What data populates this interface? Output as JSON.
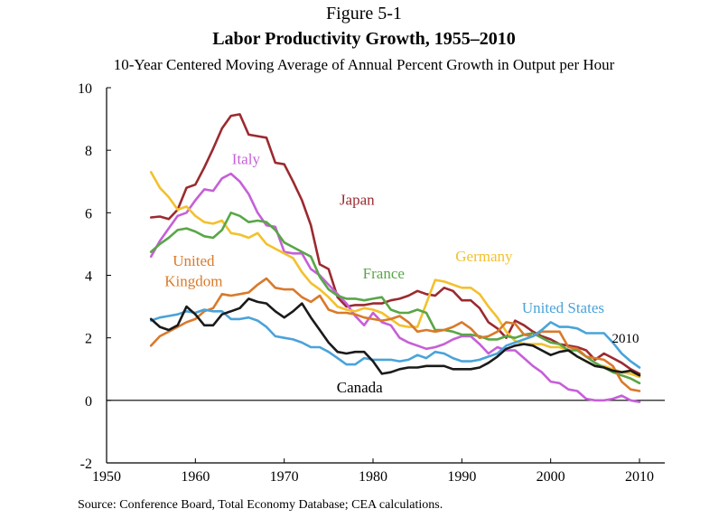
{
  "figure_label": "Figure 5-1",
  "chart_data": {
    "type": "line",
    "title": "Labor Productivity Growth, 1955–2010",
    "subtitle": "10-Year Centered Moving Average of Annual Percent Growth in Output per Hour",
    "source": "Source: Conference Board, Total Economy Database; CEA calculations.",
    "xlabel": "",
    "ylabel": "",
    "xlim": [
      1950,
      2010
    ],
    "ylim": [
      -2,
      10
    ],
    "xticks": [
      1950,
      1960,
      1970,
      1980,
      1990,
      2000,
      2010
    ],
    "yticks": [
      -2,
      0,
      2,
      4,
      6,
      8,
      10
    ],
    "grid": false,
    "end_annotation": "2010",
    "series": [
      {
        "name": "Japan",
        "color": "#9b2a30",
        "x": [
          1955,
          1956,
          1957,
          1958,
          1959,
          1960,
          1961,
          1962,
          1963,
          1964,
          1965,
          1966,
          1967,
          1968,
          1969,
          1970,
          1971,
          1972,
          1973,
          1974,
          1975,
          1976,
          1977,
          1978,
          1979,
          1980,
          1981,
          1982,
          1983,
          1984,
          1985,
          1986,
          1987,
          1988,
          1989,
          1990,
          1991,
          1992,
          1993,
          1994,
          1995,
          1996,
          1997,
          1998,
          1999,
          2000,
          2001,
          2002,
          2003,
          2004,
          2005,
          2006,
          2007,
          2008,
          2009,
          2010
        ],
        "y": [
          5.85,
          5.88,
          5.8,
          6.1,
          6.8,
          6.9,
          7.45,
          8.05,
          8.7,
          9.1,
          9.15,
          8.5,
          8.45,
          8.4,
          7.6,
          7.55,
          7.0,
          6.4,
          5.6,
          4.35,
          4.2,
          3.3,
          3.0,
          3.05,
          3.05,
          3.1,
          3.1,
          3.2,
          3.25,
          3.35,
          3.5,
          3.4,
          3.35,
          3.6,
          3.5,
          3.2,
          3.2,
          2.95,
          2.5,
          2.3,
          2.0,
          2.55,
          2.4,
          2.2,
          2.05,
          1.95,
          1.8,
          1.75,
          1.7,
          1.6,
          1.3,
          1.5,
          1.35,
          1.2,
          1.0,
          0.85
        ]
      },
      {
        "name": "Italy",
        "color": "#c65fd8",
        "x": [
          1955,
          1956,
          1957,
          1958,
          1959,
          1960,
          1961,
          1962,
          1963,
          1964,
          1965,
          1966,
          1967,
          1968,
          1969,
          1970,
          1971,
          1972,
          1973,
          1974,
          1975,
          1976,
          1977,
          1978,
          1979,
          1980,
          1981,
          1982,
          1983,
          1984,
          1985,
          1986,
          1987,
          1988,
          1989,
          1990,
          1991,
          1992,
          1993,
          1994,
          1995,
          1996,
          1997,
          1998,
          1999,
          2000,
          2001,
          2002,
          2003,
          2004,
          2005,
          2006,
          2007,
          2008,
          2009,
          2010
        ],
        "y": [
          4.6,
          5.1,
          5.5,
          5.9,
          6.0,
          6.4,
          6.75,
          6.7,
          7.1,
          7.25,
          7.0,
          6.6,
          6.0,
          5.6,
          5.55,
          4.75,
          4.7,
          4.7,
          4.2,
          4.0,
          3.7,
          3.4,
          3.1,
          2.7,
          2.4,
          2.8,
          2.5,
          2.4,
          2.0,
          1.85,
          1.75,
          1.65,
          1.7,
          1.8,
          1.95,
          2.05,
          2.05,
          1.8,
          1.5,
          1.7,
          1.6,
          1.6,
          1.35,
          1.1,
          0.9,
          0.6,
          0.55,
          0.35,
          0.3,
          0.05,
          0.0,
          0.0,
          0.05,
          0.15,
          0.0,
          -0.05
        ]
      },
      {
        "name": "Germany",
        "color": "#f2c12e",
        "x": [
          1955,
          1956,
          1957,
          1958,
          1959,
          1960,
          1961,
          1962,
          1963,
          1964,
          1965,
          1966,
          1967,
          1968,
          1969,
          1970,
          1971,
          1972,
          1973,
          1974,
          1975,
          1976,
          1977,
          1978,
          1979,
          1980,
          1981,
          1982,
          1983,
          1984,
          1985,
          1986,
          1987,
          1988,
          1989,
          1990,
          1991,
          1992,
          1993,
          1994,
          1995,
          1996,
          1997,
          1998,
          1999,
          2000,
          2001,
          2002,
          2003,
          2004,
          2005,
          2006,
          2007,
          2008,
          2009,
          2010
        ],
        "y": [
          7.3,
          6.8,
          6.5,
          6.1,
          6.2,
          5.9,
          5.7,
          5.65,
          5.75,
          5.35,
          5.3,
          5.2,
          5.35,
          5.0,
          4.85,
          4.7,
          4.55,
          4.1,
          3.75,
          3.55,
          3.3,
          3.0,
          2.9,
          2.85,
          2.95,
          2.9,
          2.8,
          2.6,
          2.4,
          2.35,
          2.35,
          3.1,
          3.85,
          3.8,
          3.7,
          3.6,
          3.6,
          3.4,
          3.0,
          2.65,
          2.2,
          1.9,
          1.8,
          1.8,
          1.8,
          1.7,
          1.7,
          1.6,
          1.4,
          1.25,
          1.1,
          1.1,
          1.0,
          0.9,
          0.85,
          0.75
        ]
      },
      {
        "name": "France",
        "color": "#59a647",
        "x": [
          1955,
          1956,
          1957,
          1958,
          1959,
          1960,
          1961,
          1962,
          1963,
          1964,
          1965,
          1966,
          1967,
          1968,
          1969,
          1970,
          1971,
          1972,
          1973,
          1974,
          1975,
          1976,
          1977,
          1978,
          1979,
          1980,
          1981,
          1982,
          1983,
          1984,
          1985,
          1986,
          1987,
          1988,
          1989,
          1990,
          1991,
          1992,
          1993,
          1994,
          1995,
          1996,
          1997,
          1998,
          1999,
          2000,
          2001,
          2002,
          2003,
          2004,
          2005,
          2006,
          2007,
          2008,
          2009,
          2010
        ],
        "y": [
          4.75,
          5.0,
          5.2,
          5.45,
          5.5,
          5.4,
          5.25,
          5.2,
          5.45,
          6.0,
          5.9,
          5.7,
          5.75,
          5.7,
          5.45,
          5.05,
          4.9,
          4.75,
          4.6,
          3.95,
          3.55,
          3.35,
          3.25,
          3.25,
          3.2,
          3.25,
          3.3,
          2.9,
          2.8,
          2.8,
          2.9,
          2.8,
          2.25,
          2.25,
          2.2,
          2.1,
          2.1,
          2.05,
          1.95,
          1.95,
          2.05,
          2.0,
          2.1,
          2.15,
          2.0,
          1.85,
          1.8,
          1.6,
          1.6,
          1.4,
          1.2,
          1.05,
          0.9,
          0.8,
          0.7,
          0.55
        ]
      },
      {
        "name": "United Kingdom",
        "color": "#d97a2a",
        "x": [
          1955,
          1956,
          1957,
          1958,
          1959,
          1960,
          1961,
          1962,
          1963,
          1964,
          1965,
          1966,
          1967,
          1968,
          1969,
          1970,
          1971,
          1972,
          1973,
          1974,
          1975,
          1976,
          1977,
          1978,
          1979,
          1980,
          1981,
          1982,
          1983,
          1984,
          1985,
          1986,
          1987,
          1988,
          1989,
          1990,
          1991,
          1992,
          1993,
          1994,
          1995,
          1996,
          1997,
          1998,
          1999,
          2000,
          2001,
          2002,
          2003,
          2004,
          2005,
          2006,
          2007,
          2008,
          2009,
          2010
        ],
        "y": [
          1.75,
          2.05,
          2.2,
          2.35,
          2.5,
          2.6,
          2.85,
          2.95,
          3.4,
          3.35,
          3.4,
          3.45,
          3.7,
          3.9,
          3.6,
          3.55,
          3.55,
          3.3,
          3.15,
          3.35,
          2.9,
          2.8,
          2.8,
          2.75,
          2.65,
          2.6,
          2.55,
          2.6,
          2.7,
          2.5,
          2.2,
          2.25,
          2.2,
          2.25,
          2.35,
          2.5,
          2.3,
          2.0,
          2.05,
          2.2,
          2.5,
          2.45,
          2.1,
          2.05,
          2.2,
          2.2,
          2.2,
          1.7,
          1.65,
          1.4,
          1.35,
          1.3,
          1.1,
          0.6,
          0.35,
          0.3
        ]
      },
      {
        "name": "United States",
        "color": "#4aa3d9",
        "x": [
          1955,
          1956,
          1957,
          1958,
          1959,
          1960,
          1961,
          1962,
          1963,
          1964,
          1965,
          1966,
          1967,
          1968,
          1969,
          1970,
          1971,
          1972,
          1973,
          1974,
          1975,
          1976,
          1977,
          1978,
          1979,
          1980,
          1981,
          1982,
          1983,
          1984,
          1985,
          1986,
          1987,
          1988,
          1989,
          1990,
          1991,
          1992,
          1993,
          1994,
          1995,
          1996,
          1997,
          1998,
          1999,
          2000,
          2001,
          2002,
          2003,
          2004,
          2005,
          2006,
          2007,
          2008,
          2009,
          2010
        ],
        "y": [
          2.55,
          2.65,
          2.7,
          2.75,
          2.85,
          2.8,
          2.9,
          2.85,
          2.85,
          2.6,
          2.6,
          2.65,
          2.55,
          2.35,
          2.05,
          2.0,
          1.95,
          1.85,
          1.7,
          1.7,
          1.55,
          1.35,
          1.15,
          1.15,
          1.35,
          1.3,
          1.3,
          1.3,
          1.25,
          1.3,
          1.45,
          1.35,
          1.55,
          1.5,
          1.35,
          1.25,
          1.25,
          1.3,
          1.4,
          1.5,
          1.75,
          1.85,
          1.95,
          2.05,
          2.25,
          2.5,
          2.35,
          2.35,
          2.3,
          2.15,
          2.15,
          2.15,
          1.85,
          1.5,
          1.25,
          1.05
        ]
      },
      {
        "name": "Canada",
        "color": "#1a1a1a",
        "x": [
          1955,
          1956,
          1957,
          1958,
          1959,
          1960,
          1961,
          1962,
          1963,
          1964,
          1965,
          1966,
          1967,
          1968,
          1969,
          1970,
          1971,
          1972,
          1973,
          1974,
          1975,
          1976,
          1977,
          1978,
          1979,
          1980,
          1981,
          1982,
          1983,
          1984,
          1985,
          1986,
          1987,
          1988,
          1989,
          1990,
          1991,
          1992,
          1993,
          1994,
          1995,
          1996,
          1997,
          1998,
          1999,
          2000,
          2001,
          2002,
          2003,
          2004,
          2005,
          2006,
          2007,
          2008,
          2009,
          2010
        ],
        "y": [
          2.6,
          2.35,
          2.25,
          2.4,
          3.0,
          2.75,
          2.4,
          2.4,
          2.75,
          2.85,
          2.95,
          3.25,
          3.15,
          3.1,
          2.85,
          2.65,
          2.85,
          3.1,
          2.65,
          2.25,
          1.85,
          1.55,
          1.5,
          1.55,
          1.55,
          1.25,
          0.85,
          0.9,
          1.0,
          1.05,
          1.05,
          1.1,
          1.1,
          1.1,
          1.0,
          1.0,
          1.0,
          1.05,
          1.2,
          1.4,
          1.65,
          1.75,
          1.8,
          1.75,
          1.6,
          1.45,
          1.55,
          1.6,
          1.4,
          1.25,
          1.1,
          1.05,
          0.95,
          0.9,
          0.95,
          0.8
        ]
      }
    ],
    "labels": [
      {
        "text": "Japan",
        "series": "Japan",
        "x": 1978.2,
        "y": 6.25,
        "anchor": "middle"
      },
      {
        "text": "Italy",
        "series": "Italy",
        "x": 1965.7,
        "y": 7.55,
        "anchor": "middle"
      },
      {
        "text": "Germany",
        "series": "Germany",
        "x": 1992.5,
        "y": 4.45,
        "anchor": "middle"
      },
      {
        "text": "France",
        "series": "France",
        "x": 1981.2,
        "y": 3.9,
        "anchor": "middle"
      },
      {
        "text": "United",
        "series": "United Kingdom",
        "x": 1959.8,
        "y": 4.3,
        "anchor": "middle"
      },
      {
        "text": "Kingdom",
        "series": "United Kingdom",
        "x": 1959.8,
        "y": 3.65,
        "anchor": "middle"
      },
      {
        "text": "United States",
        "series": "United States",
        "x": 2001.4,
        "y": 2.8,
        "anchor": "middle"
      },
      {
        "text": "Canada",
        "series": "Canada",
        "x": 1978.5,
        "y": 0.25,
        "anchor": "middle"
      }
    ]
  }
}
